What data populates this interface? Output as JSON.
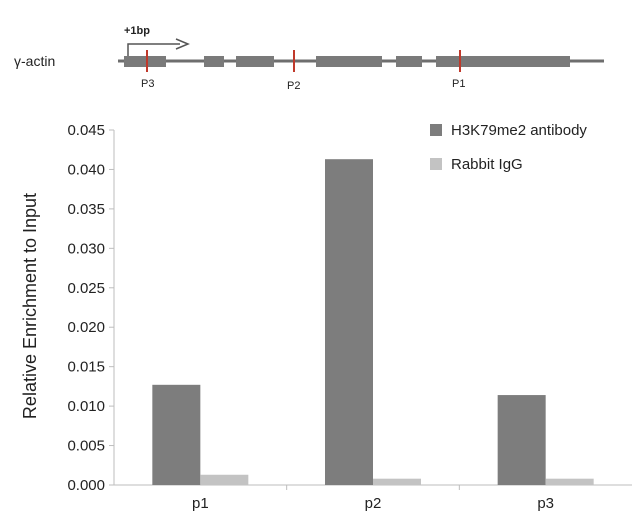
{
  "gene_diagram": {
    "gene_label": "γ-actin",
    "tss_label": "+1bp",
    "primer_labels": [
      "P3",
      "P2",
      "P1"
    ],
    "colors": {
      "backbone": "#6e6e6e",
      "exon": "#7a7a7a",
      "primer": "#c0392b",
      "arrow": "#555555"
    }
  },
  "chart_data": {
    "type": "bar",
    "title": "",
    "xlabel": "",
    "ylabel": "Relative Enrichment to Input",
    "categories": [
      "p1",
      "p2",
      "p3"
    ],
    "series": [
      {
        "name": "H3K79me2 antibody",
        "color": "#7d7d7d",
        "values": [
          0.0127,
          0.0413,
          0.0114
        ]
      },
      {
        "name": "Rabbit IgG",
        "color": "#c3c3c3",
        "values": [
          0.0013,
          0.0008,
          0.0008
        ]
      }
    ],
    "ylim": [
      0,
      0.045
    ],
    "yticks": [
      "0.000",
      "0.005",
      "0.010",
      "0.015",
      "0.020",
      "0.025",
      "0.030",
      "0.035",
      "0.040",
      "0.045"
    ],
    "legend_position": "top-right",
    "grid": false
  }
}
